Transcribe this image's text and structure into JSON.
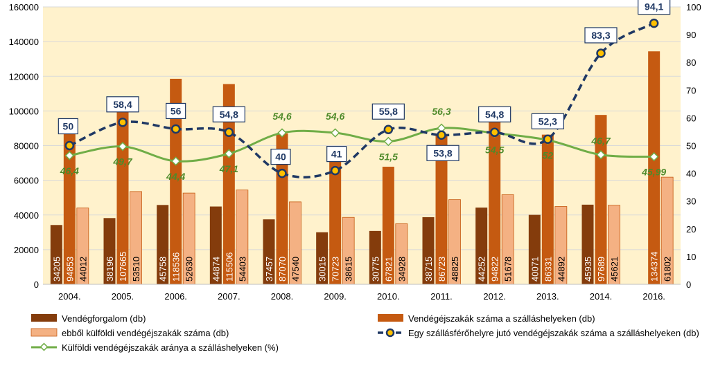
{
  "chart_data": {
    "type": "bar",
    "categories": [
      "2004.",
      "2005.",
      "2006.",
      "2007.",
      "2008.",
      "2009.",
      "2010.",
      "2011.",
      "2012.",
      "2013.",
      "2014.",
      "2016."
    ],
    "y_left": {
      "ylim": [
        0,
        160000
      ],
      "ticks": [
        "0",
        "20000",
        "40000",
        "60000",
        "80000",
        "100000",
        "120000",
        "140000",
        "160000"
      ]
    },
    "y_right": {
      "ylim": [
        0,
        100
      ],
      "ticks": [
        "0",
        "10",
        "20",
        "30",
        "40",
        "50",
        "60",
        "70",
        "80",
        "90",
        "100"
      ]
    },
    "series": [
      {
        "name": "Vendégforgalom (db)",
        "type": "bar",
        "axis": "left",
        "color": "#843c0c",
        "values": [
          34205,
          38196,
          45758,
          44874,
          37457,
          30015,
          30775,
          38715,
          44252,
          40071,
          45935,
          null
        ],
        "labels": [
          "34205",
          "38196",
          "45758",
          "44874",
          "37457",
          "30015",
          "30775",
          "38715",
          "44252",
          "40071",
          "45935",
          ""
        ]
      },
      {
        "name": "Vendégéjszakák száma a szálláshelyeken (db)",
        "type": "bar",
        "axis": "left",
        "color": "#c55a11",
        "values": [
          94853,
          107665,
          118536,
          115506,
          87070,
          70723,
          67821,
          86723,
          94822,
          86331,
          97689,
          134374
        ],
        "labels": [
          "94853",
          "107665",
          "118536",
          "115506",
          "87070",
          "70723",
          "67821",
          "86723",
          "94822",
          "86331",
          "97689",
          "134374"
        ]
      },
      {
        "name": "ebből külföldi vendégéjszakák száma (db)",
        "type": "bar",
        "axis": "left",
        "color": "#f4b183",
        "values": [
          44012,
          53510,
          52630,
          54403,
          47540,
          38615,
          34928,
          48825,
          51678,
          44892,
          45621,
          61802
        ],
        "labels": [
          "44012",
          "53510",
          "52630",
          "54403",
          "47540",
          "38615",
          "34928",
          "48825",
          "51678",
          "44892",
          "45621",
          "61802"
        ]
      },
      {
        "name": "Egy szállásférőhelyre jutó vendégéjszakák száma a szálláshelyeken (db)",
        "type": "line",
        "axis": "right",
        "color": "#1f3864",
        "values": [
          50,
          58.4,
          56,
          54.8,
          40,
          41,
          55.8,
          53.8,
          54.8,
          52.3,
          83.3,
          94.1
        ],
        "labels": [
          "50",
          "58,4",
          "56",
          "54,8",
          "40",
          "41",
          "55,8",
          "53,8",
          "54,8",
          "52,3",
          "83,3",
          "94,1"
        ]
      },
      {
        "name": "Külföldi vendégéjszakák aránya a szálláshelyeken (%)",
        "type": "line",
        "axis": "right",
        "color": "#70ad47",
        "values": [
          46.4,
          49.7,
          44.4,
          47.1,
          54.6,
          54.6,
          51.5,
          56.3,
          54.5,
          52,
          46.7,
          45.99
        ],
        "labels": [
          "46,4",
          "49,7",
          "44,4",
          "47,1",
          "54,6",
          "54,6",
          "51,5",
          "56,3",
          "54,5",
          "52",
          "46,7",
          "45,99"
        ]
      }
    ],
    "plot_background": "#fff2cc",
    "legend_position": "bottom"
  }
}
